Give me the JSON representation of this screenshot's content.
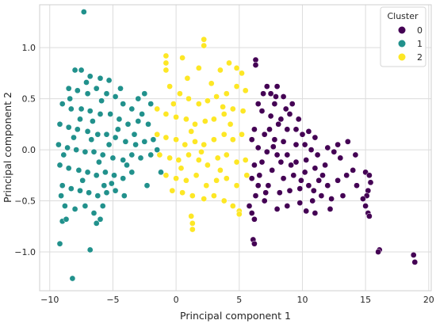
{
  "chart_data": {
    "type": "scatter",
    "xlabel": "Principal component 1",
    "ylabel": "Principal component 2",
    "xlim": [
      -10.8,
      20.2
    ],
    "ylim": [
      -1.38,
      1.42
    ],
    "xticks": [
      -10,
      -5,
      0,
      5,
      10,
      15,
      20
    ],
    "yticks": [
      -1.0,
      -0.5,
      0.0,
      0.5,
      1.0
    ],
    "xtick_labels": [
      "−10",
      "−5",
      "0",
      "5",
      "10",
      "15",
      "20"
    ],
    "ytick_labels": [
      "−1.0",
      "−0.5",
      "0.0",
      "0.5",
      "1.0"
    ],
    "grid": true,
    "legend": {
      "title": "Cluster",
      "placement": "top-right",
      "entries": [
        {
          "label": "0",
          "color": "#440154"
        },
        {
          "label": "1",
          "color": "#21918c"
        },
        {
          "label": "2",
          "color": "#fde725"
        }
      ]
    },
    "series": [
      {
        "cluster": "0",
        "color": "#440154",
        "points": [
          [
            6.3,
            0.88
          ],
          [
            6.3,
            0.83
          ],
          [
            7.2,
            0.62
          ],
          [
            7.5,
            0.55
          ],
          [
            8.0,
            0.62
          ],
          [
            8.5,
            0.52
          ],
          [
            7.8,
            0.45
          ],
          [
            6.5,
            0.45
          ],
          [
            6.8,
            0.38
          ],
          [
            7.5,
            0.33
          ],
          [
            8.3,
            0.3
          ],
          [
            9.0,
            0.35
          ],
          [
            8.8,
            0.2
          ],
          [
            9.5,
            0.2
          ],
          [
            10.0,
            0.15
          ],
          [
            10.5,
            0.18
          ],
          [
            11.0,
            0.12
          ],
          [
            10.2,
            0.05
          ],
          [
            9.5,
            0.05
          ],
          [
            8.5,
            0.08
          ],
          [
            7.8,
            0.1
          ],
          [
            7.0,
            0.15
          ],
          [
            6.2,
            0.2
          ],
          [
            6.0,
            0.1
          ],
          [
            6.5,
            0.02
          ],
          [
            7.2,
            -0.02
          ],
          [
            8.0,
            -0.05
          ],
          [
            8.8,
            -0.05
          ],
          [
            9.5,
            -0.12
          ],
          [
            10.3,
            -0.1
          ],
          [
            11.2,
            -0.05
          ],
          [
            12.0,
            0.02
          ],
          [
            12.5,
            -0.02
          ],
          [
            13.0,
            -0.08
          ],
          [
            11.8,
            -0.15
          ],
          [
            11.0,
            -0.18
          ],
          [
            10.2,
            -0.22
          ],
          [
            9.3,
            -0.25
          ],
          [
            8.5,
            -0.28
          ],
          [
            7.6,
            -0.2
          ],
          [
            6.8,
            -0.12
          ],
          [
            6.2,
            -0.15
          ],
          [
            6.0,
            -0.28
          ],
          [
            6.5,
            -0.35
          ],
          [
            7.3,
            -0.35
          ],
          [
            8.2,
            -0.42
          ],
          [
            9.0,
            -0.4
          ],
          [
            9.8,
            -0.38
          ],
          [
            10.5,
            -0.35
          ],
          [
            11.3,
            -0.3
          ],
          [
            12.0,
            -0.35
          ],
          [
            12.8,
            -0.3
          ],
          [
            13.5,
            -0.25
          ],
          [
            14.0,
            -0.2
          ],
          [
            14.3,
            -0.35
          ],
          [
            13.2,
            -0.45
          ],
          [
            12.3,
            -0.48
          ],
          [
            11.5,
            -0.45
          ],
          [
            10.8,
            -0.5
          ],
          [
            9.8,
            -0.52
          ],
          [
            8.8,
            -0.55
          ],
          [
            8.0,
            -0.58
          ],
          [
            7.0,
            -0.5
          ],
          [
            6.3,
            -0.45
          ],
          [
            5.8,
            -0.55
          ],
          [
            6.0,
            -0.62
          ],
          [
            6.2,
            -0.68
          ],
          [
            6.1,
            -0.88
          ],
          [
            6.2,
            -0.92
          ],
          [
            10.3,
            -0.6
          ],
          [
            11.0,
            -0.62
          ],
          [
            12.2,
            -0.58
          ],
          [
            15.0,
            -0.22
          ],
          [
            15.3,
            -0.25
          ],
          [
            15.4,
            -0.32
          ],
          [
            15.2,
            -0.4
          ],
          [
            15.1,
            -0.45
          ],
          [
            14.8,
            -0.48
          ],
          [
            15.0,
            -0.55
          ],
          [
            15.2,
            -0.62
          ],
          [
            15.3,
            -0.65
          ],
          [
            16.1,
            -0.98
          ],
          [
            16.0,
            -1.0
          ],
          [
            18.8,
            -1.03
          ],
          [
            18.9,
            -1.1
          ],
          [
            12.8,
            0.05
          ],
          [
            13.6,
            0.08
          ],
          [
            14.2,
            -0.05
          ],
          [
            7.4,
            0.2
          ],
          [
            8.1,
            0.25
          ],
          [
            8.7,
            0.4
          ],
          [
            9.2,
            0.45
          ],
          [
            9.7,
            0.3
          ],
          [
            6.9,
            0.55
          ],
          [
            7.9,
            0.52
          ],
          [
            6.6,
            -0.25
          ],
          [
            7.1,
            -0.42
          ],
          [
            9.1,
            -0.15
          ],
          [
            10.7,
            0.0
          ],
          [
            11.6,
            -0.25
          ],
          [
            8.3,
            -0.12
          ],
          [
            7.7,
            0.03
          ],
          [
            9.9,
            -0.3
          ],
          [
            10.9,
            -0.4
          ]
        ]
      },
      {
        "cluster": "1",
        "color": "#21918c",
        "points": [
          [
            -7.3,
            1.35
          ],
          [
            -8.0,
            0.78
          ],
          [
            -7.5,
            0.78
          ],
          [
            -6.8,
            0.72
          ],
          [
            -6.0,
            0.7
          ],
          [
            -5.3,
            0.68
          ],
          [
            -8.5,
            0.6
          ],
          [
            -7.8,
            0.58
          ],
          [
            -7.0,
            0.55
          ],
          [
            -6.3,
            0.6
          ],
          [
            -5.5,
            0.55
          ],
          [
            -4.8,
            0.52
          ],
          [
            -4.2,
            0.45
          ],
          [
            -3.5,
            0.4
          ],
          [
            -2.5,
            0.55
          ],
          [
            -2.0,
            0.45
          ],
          [
            -9.0,
            0.45
          ],
          [
            -8.3,
            0.4
          ],
          [
            -7.5,
            0.4
          ],
          [
            -6.8,
            0.38
          ],
          [
            -6.0,
            0.35
          ],
          [
            -5.2,
            0.35
          ],
          [
            -4.5,
            0.3
          ],
          [
            -3.8,
            0.25
          ],
          [
            -3.0,
            0.28
          ],
          [
            -2.2,
            0.25
          ],
          [
            -9.2,
            0.25
          ],
          [
            -8.5,
            0.22
          ],
          [
            -7.8,
            0.2
          ],
          [
            -7.0,
            0.18
          ],
          [
            -6.2,
            0.15
          ],
          [
            -5.5,
            0.15
          ],
          [
            -4.8,
            0.12
          ],
          [
            -4.0,
            0.08
          ],
          [
            -3.2,
            0.05
          ],
          [
            -2.5,
            0.08
          ],
          [
            -1.8,
            0.1
          ],
          [
            -9.3,
            0.05
          ],
          [
            -8.6,
            0.02
          ],
          [
            -7.9,
            0.0
          ],
          [
            -7.2,
            -0.02
          ],
          [
            -6.5,
            -0.02
          ],
          [
            -5.8,
            -0.05
          ],
          [
            -5.0,
            -0.08
          ],
          [
            -4.2,
            -0.1
          ],
          [
            -3.5,
            -0.05
          ],
          [
            -2.8,
            -0.08
          ],
          [
            -2.0,
            -0.05
          ],
          [
            -9.2,
            -0.15
          ],
          [
            -8.5,
            -0.18
          ],
          [
            -7.7,
            -0.2
          ],
          [
            -7.0,
            -0.22
          ],
          [
            -6.3,
            -0.25
          ],
          [
            -5.6,
            -0.22
          ],
          [
            -4.9,
            -0.25
          ],
          [
            -4.2,
            -0.28
          ],
          [
            -3.5,
            -0.22
          ],
          [
            -9.0,
            -0.35
          ],
          [
            -8.3,
            -0.38
          ],
          [
            -7.6,
            -0.4
          ],
          [
            -6.9,
            -0.42
          ],
          [
            -6.2,
            -0.45
          ],
          [
            -5.5,
            -0.42
          ],
          [
            -4.8,
            -0.4
          ],
          [
            -4.1,
            -0.45
          ],
          [
            -9.1,
            -0.45
          ],
          [
            -8.8,
            -0.55
          ],
          [
            -8.0,
            -0.58
          ],
          [
            -7.2,
            -0.55
          ],
          [
            -6.5,
            -0.62
          ],
          [
            -5.8,
            -0.55
          ],
          [
            -9.0,
            -0.7
          ],
          [
            -8.7,
            -0.68
          ],
          [
            -6.3,
            -0.72
          ],
          [
            -6.0,
            -0.68
          ],
          [
            -9.2,
            -0.92
          ],
          [
            -8.2,
            -1.26
          ],
          [
            -6.8,
            -0.98
          ],
          [
            -1.2,
            -0.22
          ],
          [
            -2.3,
            -0.35
          ],
          [
            -1.5,
            0.0
          ],
          [
            -3.0,
            0.5
          ],
          [
            -6.7,
            0.1
          ],
          [
            -5.9,
            0.48
          ],
          [
            -7.4,
            -0.3
          ],
          [
            -5.1,
            -0.33
          ],
          [
            -6.6,
            0.28
          ],
          [
            -8.1,
            0.12
          ],
          [
            -4.6,
            0.2
          ],
          [
            -3.9,
            -0.15
          ],
          [
            -5.3,
            0.05
          ],
          [
            -7.1,
            0.66
          ],
          [
            -8.9,
            -0.05
          ],
          [
            -6.1,
            -0.12
          ],
          [
            -2.7,
            0.35
          ],
          [
            -4.4,
            0.6
          ],
          [
            -7.6,
            0.3
          ],
          [
            -5.7,
            -0.35
          ],
          [
            -3.3,
            0.15
          ],
          [
            -8.4,
            0.5
          ]
        ]
      },
      {
        "cluster": "2",
        "color": "#fde725",
        "points": [
          [
            2.2,
            1.08
          ],
          [
            2.2,
            1.02
          ],
          [
            -0.8,
            0.92
          ],
          [
            -0.8,
            0.85
          ],
          [
            0.5,
            0.9
          ],
          [
            1.8,
            0.8
          ],
          [
            3.5,
            0.78
          ],
          [
            4.2,
            0.85
          ],
          [
            4.8,
            0.8
          ],
          [
            5.2,
            0.75
          ],
          [
            -0.8,
            0.78
          ],
          [
            -0.5,
            0.62
          ],
          [
            0.3,
            0.55
          ],
          [
            1.0,
            0.5
          ],
          [
            1.8,
            0.45
          ],
          [
            2.5,
            0.48
          ],
          [
            3.2,
            0.52
          ],
          [
            4.0,
            0.55
          ],
          [
            4.8,
            0.62
          ],
          [
            5.5,
            0.58
          ],
          [
            -1.5,
            0.4
          ],
          [
            -0.8,
            0.35
          ],
          [
            0.0,
            0.32
          ],
          [
            0.8,
            0.3
          ],
          [
            1.5,
            0.25
          ],
          [
            2.3,
            0.28
          ],
          [
            3.0,
            0.3
          ],
          [
            3.8,
            0.35
          ],
          [
            4.5,
            0.4
          ],
          [
            5.3,
            0.38
          ],
          [
            -1.5,
            0.15
          ],
          [
            -0.8,
            0.12
          ],
          [
            0.0,
            0.1
          ],
          [
            0.7,
            0.05
          ],
          [
            1.5,
            0.08
          ],
          [
            2.2,
            0.05
          ],
          [
            3.0,
            0.1
          ],
          [
            3.8,
            0.15
          ],
          [
            4.5,
            0.1
          ],
          [
            5.2,
            0.15
          ],
          [
            -1.3,
            -0.05
          ],
          [
            -0.5,
            -0.08
          ],
          [
            0.2,
            -0.1
          ],
          [
            1.0,
            -0.05
          ],
          [
            1.8,
            -0.1
          ],
          [
            2.5,
            -0.15
          ],
          [
            3.3,
            -0.08
          ],
          [
            4.0,
            -0.05
          ],
          [
            4.8,
            -0.12
          ],
          [
            5.5,
            -0.1
          ],
          [
            -0.8,
            -0.25
          ],
          [
            0.0,
            -0.28
          ],
          [
            0.8,
            -0.3
          ],
          [
            1.6,
            -0.25
          ],
          [
            2.4,
            -0.35
          ],
          [
            3.2,
            -0.3
          ],
          [
            4.0,
            -0.28
          ],
          [
            4.8,
            -0.35
          ],
          [
            5.6,
            -0.25
          ],
          [
            -0.3,
            -0.4
          ],
          [
            0.5,
            -0.42
          ],
          [
            1.3,
            -0.45
          ],
          [
            2.2,
            -0.48
          ],
          [
            3.0,
            -0.45
          ],
          [
            3.8,
            -0.5
          ],
          [
            4.5,
            -0.55
          ],
          [
            5.0,
            -0.6
          ],
          [
            1.2,
            -0.65
          ],
          [
            1.3,
            -0.72
          ],
          [
            1.3,
            -0.78
          ],
          [
            5.0,
            -0.63
          ],
          [
            0.9,
            0.7
          ],
          [
            2.8,
            0.65
          ],
          [
            1.2,
            0.18
          ],
          [
            3.5,
            -0.2
          ],
          [
            -0.2,
            0.45
          ],
          [
            2.0,
            -0.02
          ],
          [
            4.3,
            0.25
          ],
          [
            0.4,
            -0.18
          ],
          [
            3.7,
            0.42
          ]
        ]
      }
    ]
  }
}
